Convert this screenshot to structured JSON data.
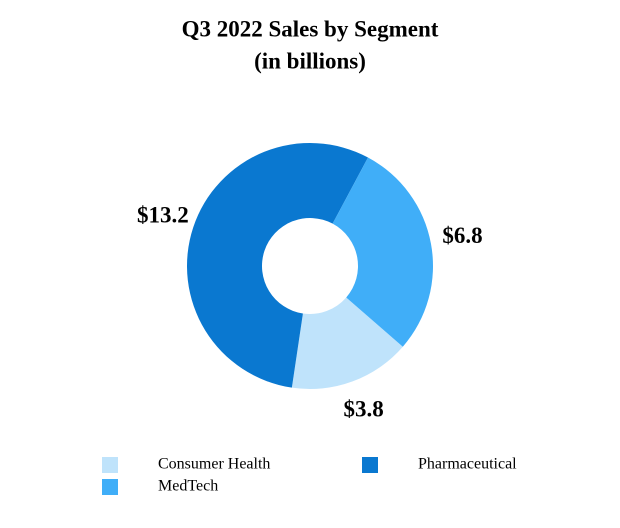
{
  "chart_data": {
    "type": "donut",
    "title": "Q3 2022 Sales by Segment",
    "subtitle": "(in billions)",
    "categories": [
      "Consumer Health",
      "MedTech",
      "Pharmaceutical"
    ],
    "values": [
      3.8,
      6.8,
      13.2
    ],
    "value_labels": [
      "$3.8",
      "$6.8",
      "$13.2"
    ],
    "colors": [
      "#bfe3fb",
      "#40aef8",
      "#0a78d0"
    ]
  }
}
